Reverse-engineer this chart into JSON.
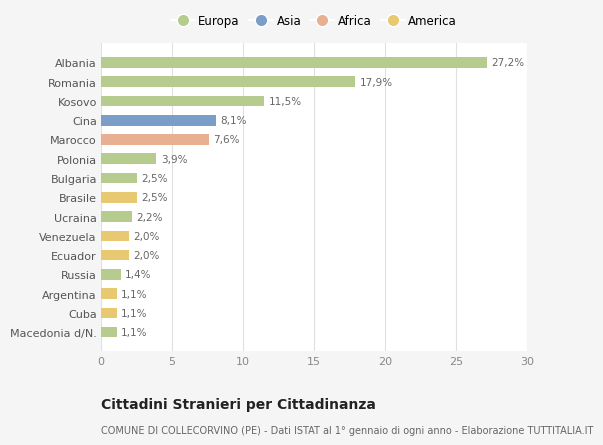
{
  "categories": [
    "Macedonia d/N.",
    "Cuba",
    "Argentina",
    "Russia",
    "Ecuador",
    "Venezuela",
    "Ucraina",
    "Brasile",
    "Bulgaria",
    "Polonia",
    "Marocco",
    "Cina",
    "Kosovo",
    "Romania",
    "Albania"
  ],
  "values": [
    1.1,
    1.1,
    1.1,
    1.4,
    2.0,
    2.0,
    2.2,
    2.5,
    2.5,
    3.9,
    7.6,
    8.1,
    11.5,
    17.9,
    27.2
  ],
  "colors": [
    "#b5cc8e",
    "#e8c870",
    "#e8c870",
    "#b5cc8e",
    "#e8c870",
    "#e8c870",
    "#b5cc8e",
    "#e8c870",
    "#b5cc8e",
    "#b5cc8e",
    "#e8b090",
    "#7a9ec8",
    "#b5cc8e",
    "#b5cc8e",
    "#b5cc8e"
  ],
  "labels": [
    "1,1%",
    "1,1%",
    "1,1%",
    "1,4%",
    "2,0%",
    "2,0%",
    "2,2%",
    "2,5%",
    "2,5%",
    "3,9%",
    "7,6%",
    "8,1%",
    "11,5%",
    "17,9%",
    "27,2%"
  ],
  "legend_labels": [
    "Europa",
    "Asia",
    "Africa",
    "America"
  ],
  "legend_colors": [
    "#b5cc8e",
    "#7a9ec8",
    "#e8b090",
    "#e8c870"
  ],
  "title": "Cittadini Stranieri per Cittadinanza",
  "subtitle": "COMUNE DI COLLECORVINO (PE) - Dati ISTAT al 1° gennaio di ogni anno - Elaborazione TUTTITALIA.IT",
  "xlim": [
    0,
    30
  ],
  "xticks": [
    0,
    5,
    10,
    15,
    20,
    25,
    30
  ],
  "background_color": "#f5f5f5",
  "plot_background": "#ffffff",
  "bar_height": 0.55,
  "title_fontsize": 10,
  "subtitle_fontsize": 7,
  "label_fontsize": 7.5,
  "ytick_fontsize": 8,
  "xtick_fontsize": 8,
  "legend_fontsize": 8.5
}
